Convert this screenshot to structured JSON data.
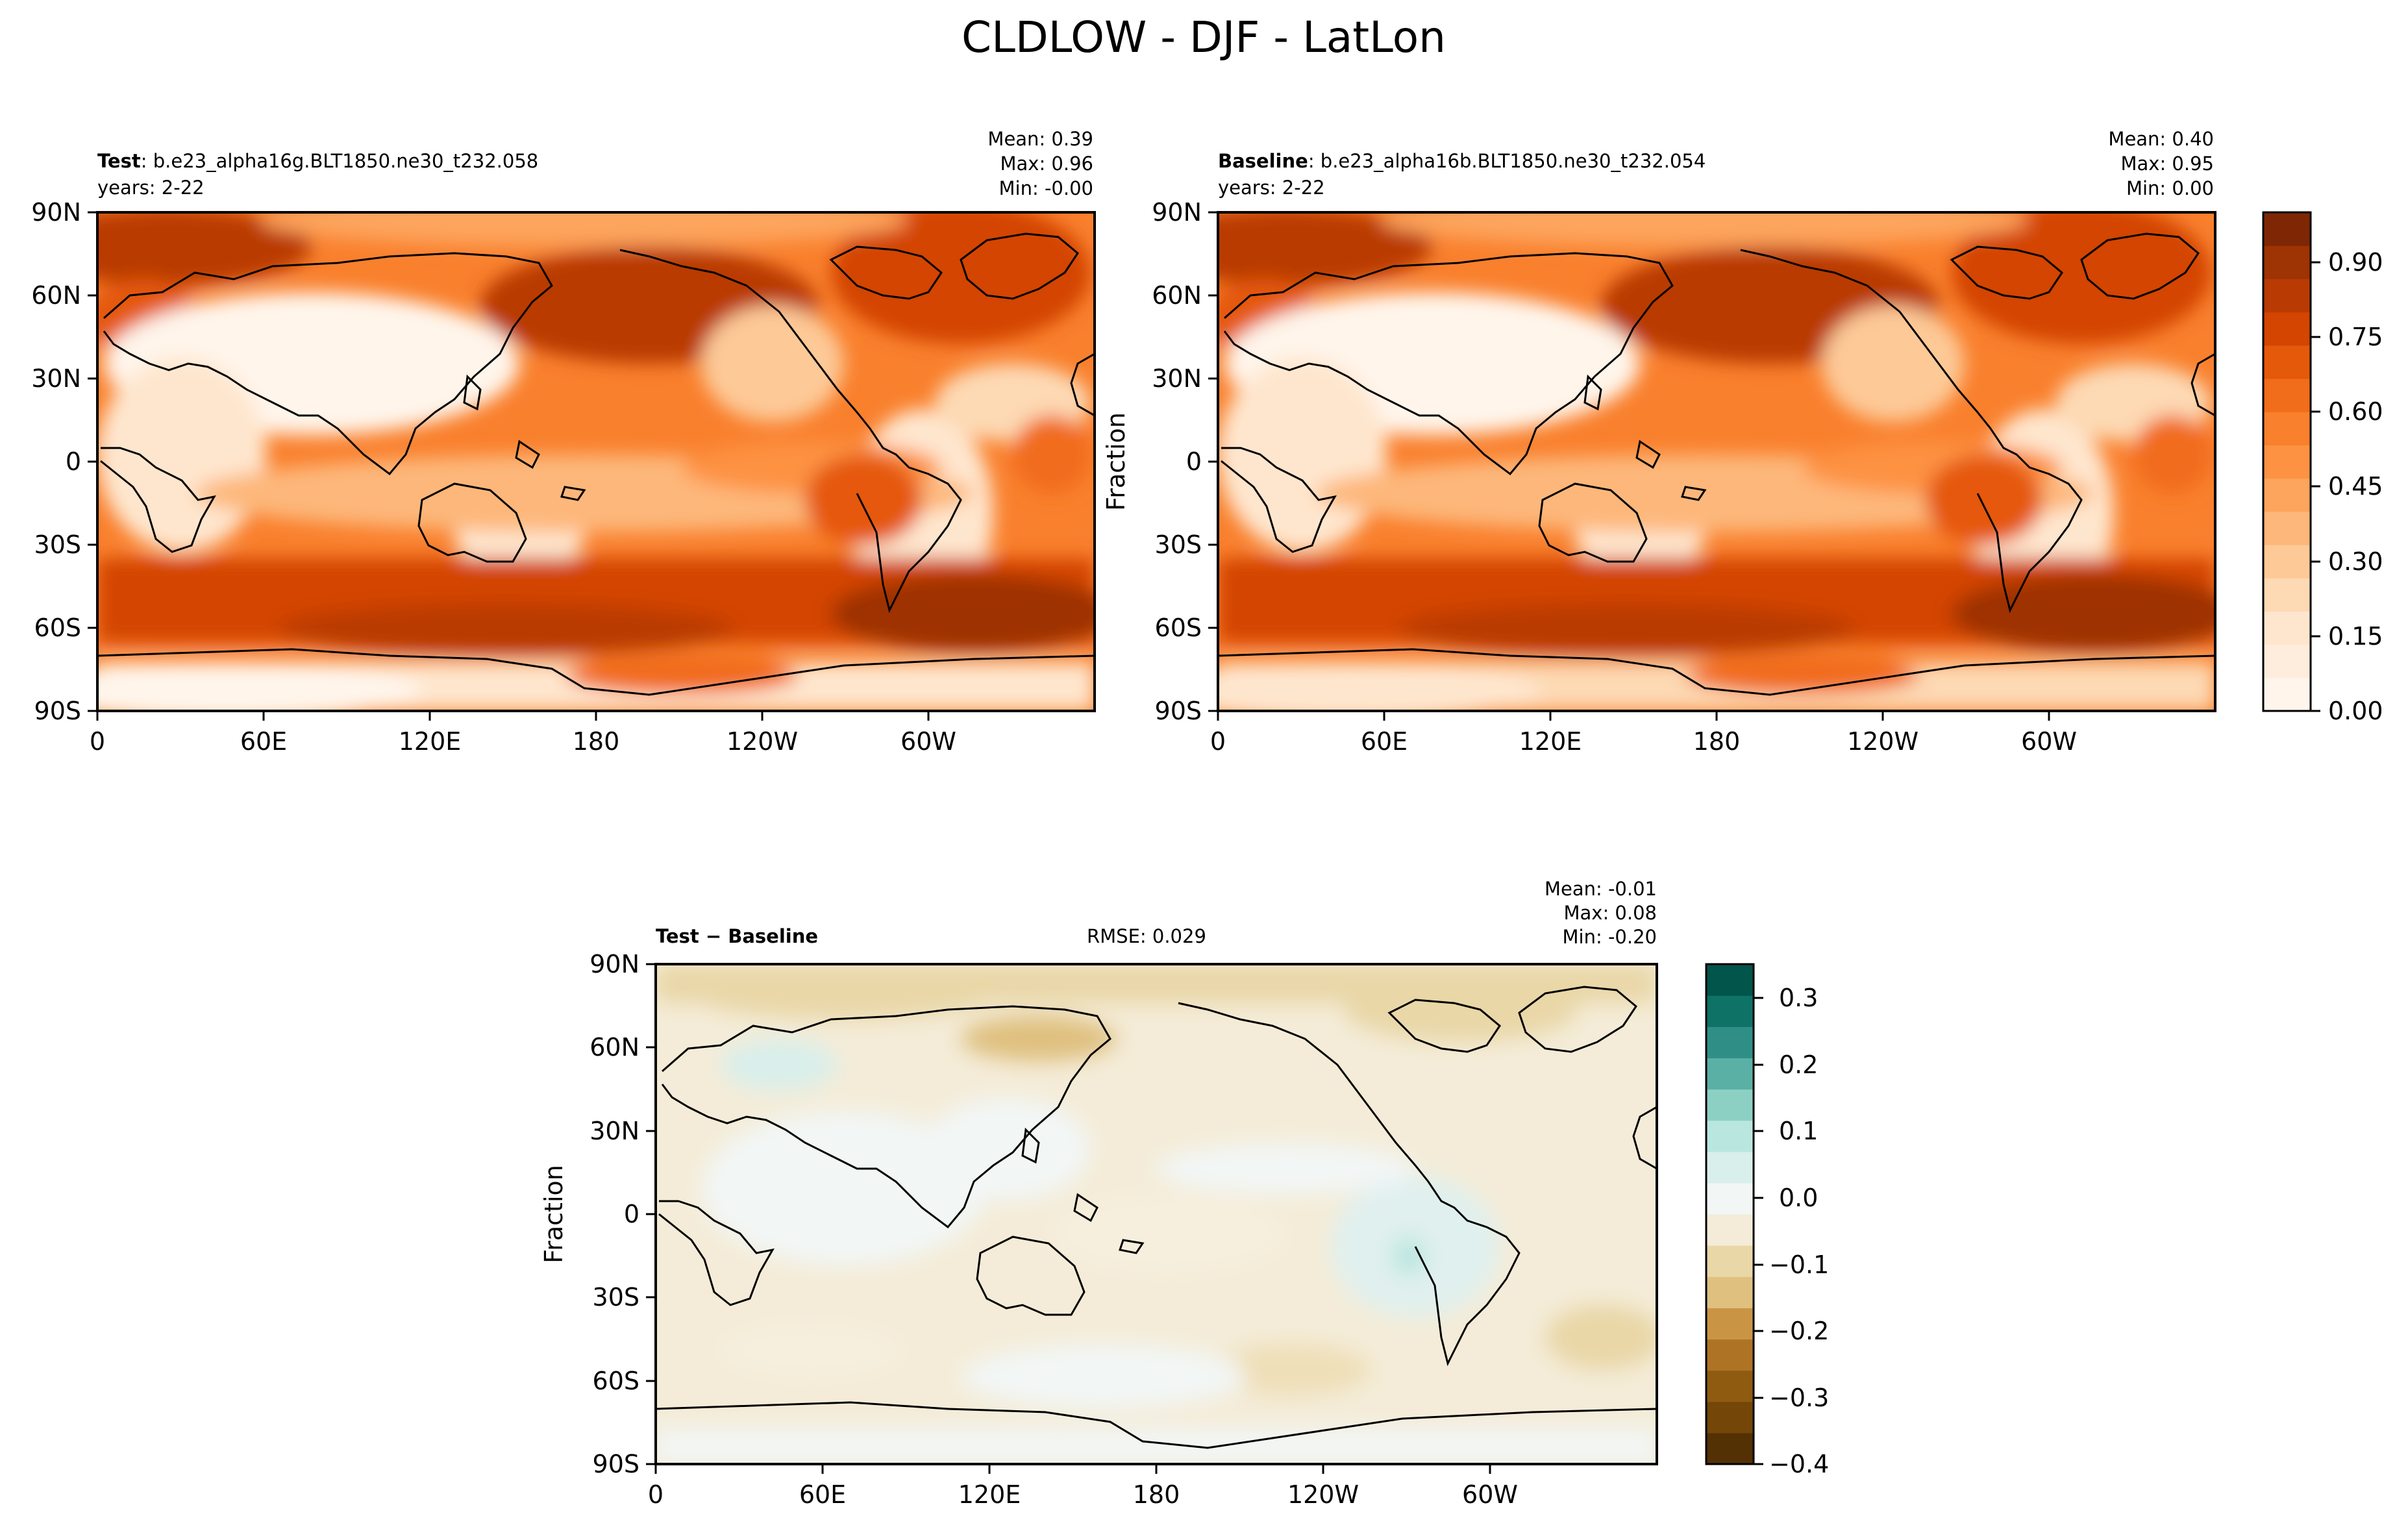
{
  "title": "CLDLOW - DJF - LatLon",
  "x_ticks": [
    "0",
    "60E",
    "120E",
    "180",
    "120W",
    "60W"
  ],
  "y_ticks": [
    "90N",
    "60N",
    "30N",
    "0",
    "30S",
    "60S",
    "90S"
  ],
  "panels": {
    "test": {
      "label_bold": "Test",
      "label_rest": ": b.e23_alpha16g.BLT1850.ne30_t232.058",
      "years": "years: 2-22",
      "stats": [
        "Mean:  0.39",
        "Max:  0.96",
        "Min: -0.00"
      ],
      "ylabel": ""
    },
    "baseline": {
      "label_bold": "Baseline",
      "label_rest": ": b.e23_alpha16b.BLT1850.ne30_t232.054",
      "years": "years: 2-22",
      "stats": [
        "Mean:  0.40",
        "Max:  0.95",
        "Min:  0.00"
      ],
      "ylabel": "Fraction"
    },
    "diff": {
      "label_bold": "Test − Baseline",
      "rmse": "RMSE: 0.029",
      "stats": [
        "Mean: -0.01",
        "Max:  0.08",
        "Min: -0.20"
      ],
      "ylabel": "Fraction"
    }
  },
  "colorbars": {
    "main": {
      "ticks": [
        "0.00",
        "0.15",
        "0.30",
        "0.45",
        "0.60",
        "0.75",
        "0.90"
      ],
      "colors": [
        "#fff5eb",
        "#feeddc",
        "#fee6ce",
        "#fdd9b4",
        "#fdc997",
        "#fdb77a",
        "#fda45d",
        "#fd9243",
        "#f9802d",
        "#f16c1b",
        "#e5590a",
        "#d34501",
        "#b93b03",
        "#9e3304",
        "#7f2704"
      ]
    },
    "diff": {
      "ticks": [
        "0.3",
        "0.2",
        "0.1",
        "0.0",
        "−0.1",
        "−0.2",
        "−0.3",
        "−0.4"
      ],
      "colors": [
        "#543005",
        "#744608",
        "#8f5b10",
        "#af7326",
        "#c99545",
        "#dfc07f",
        "#e9d7a7",
        "#f4ecd8",
        "#f2f6f5",
        "#d9efeb",
        "#bae6e0",
        "#8cd0c4",
        "#5bb0a5",
        "#2f8f87",
        "#0e7267",
        "#01554a"
      ]
    }
  },
  "chart_data": [
    {
      "type": "heatmap",
      "title": "Test : b.e23_alpha16g.BLT1850.ne30_t232.058",
      "subtitle": "years: 2-22",
      "stats": {
        "mean": 0.39,
        "max": 0.96,
        "min": -0.0
      },
      "x_ticks": [
        "0",
        "60E",
        "120E",
        "180",
        "120W",
        "60W"
      ],
      "y_ticks": [
        "90N",
        "60N",
        "30N",
        "0",
        "30S",
        "60S",
        "90S"
      ],
      "xlim": [
        0,
        360
      ],
      "ylim": [
        -90,
        90
      ],
      "colorbar": {
        "min": 0.0,
        "max": 1.0,
        "ticks": [
          0.0,
          0.15,
          0.3,
          0.45,
          0.6,
          0.75,
          0.9
        ]
      }
    },
    {
      "type": "heatmap",
      "title": "Baseline : b.e23_alpha16b.BLT1850.ne30_t232.054",
      "subtitle": "years: 2-22",
      "ylabel": "Fraction",
      "stats": {
        "mean": 0.4,
        "max": 0.95,
        "min": 0.0
      },
      "x_ticks": [
        "0",
        "60E",
        "120E",
        "180",
        "120W",
        "60W"
      ],
      "y_ticks": [
        "90N",
        "60N",
        "30N",
        "0",
        "30S",
        "60S",
        "90S"
      ],
      "xlim": [
        0,
        360
      ],
      "ylim": [
        -90,
        90
      ],
      "colorbar": {
        "min": 0.0,
        "max": 1.0,
        "ticks": [
          0.0,
          0.15,
          0.3,
          0.45,
          0.6,
          0.75,
          0.9
        ]
      }
    },
    {
      "type": "heatmap",
      "title": "Test − Baseline",
      "ylabel": "Fraction",
      "rmse": 0.029,
      "stats": {
        "mean": -0.01,
        "max": 0.08,
        "min": -0.2
      },
      "x_ticks": [
        "0",
        "60E",
        "120E",
        "180",
        "120W",
        "60W"
      ],
      "y_ticks": [
        "90N",
        "60N",
        "30N",
        "0",
        "30S",
        "60S",
        "90S"
      ],
      "xlim": [
        0,
        360
      ],
      "ylim": [
        -90,
        90
      ],
      "colorbar": {
        "min": -0.4,
        "max": 0.35,
        "ticks": [
          0.3,
          0.2,
          0.1,
          0.0,
          -0.1,
          -0.2,
          -0.3,
          -0.4
        ]
      }
    }
  ]
}
